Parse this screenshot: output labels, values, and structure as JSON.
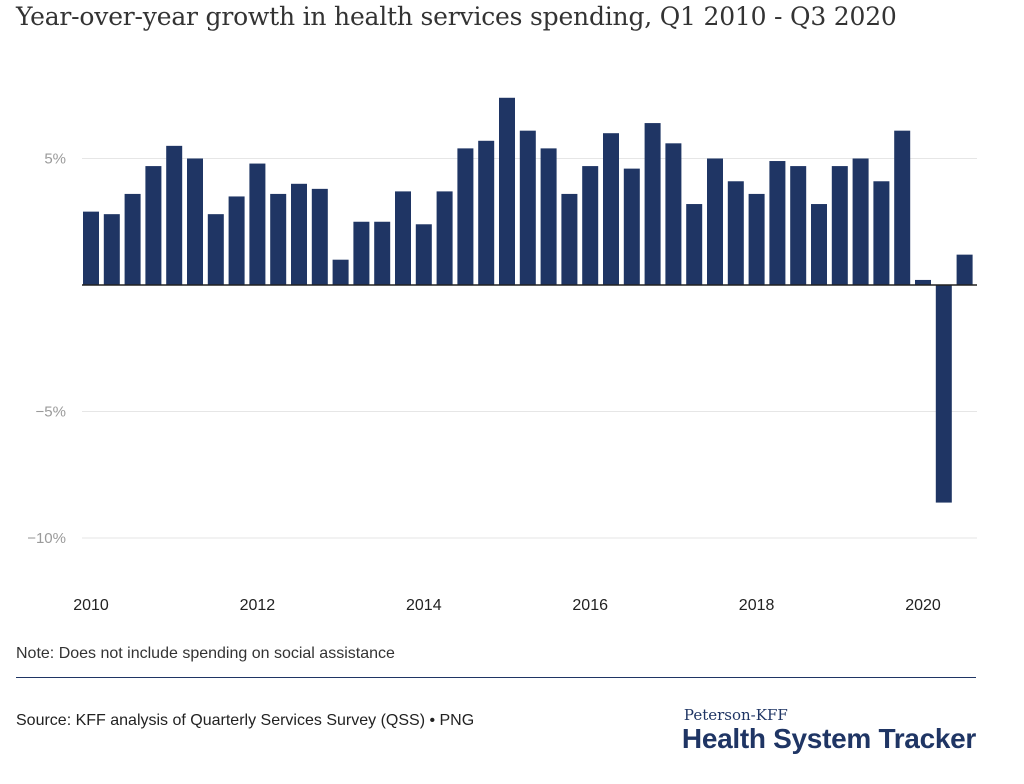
{
  "title": "Year-over-year growth in health services spending, Q1 2010 - Q3 2020",
  "note": "Note: Does not include spending on social assistance",
  "source": "Source: KFF analysis of Quarterly Services Survey (QSS) • PNG",
  "logo": {
    "top": "Peterson-KFF",
    "main": "Health System Tracker"
  },
  "colors": {
    "bar": "#1f3564",
    "grid": "#e6e6e6",
    "zero_line": "#222222",
    "divider": "#1f3564"
  },
  "chart_data": {
    "type": "bar",
    "title": "Year-over-year growth in health services spending, Q1 2010 - Q3 2020",
    "xlabel": "",
    "ylabel": "",
    "unit": "%",
    "ylim": [
      -11,
      8
    ],
    "grid": true,
    "y_ticks": [
      {
        "value": 5,
        "label": "5%"
      },
      {
        "value": -5,
        "label": "−5%"
      },
      {
        "value": -10,
        "label": "−10%"
      }
    ],
    "x_ticks": [
      {
        "index": 0,
        "label": "2010"
      },
      {
        "index": 8,
        "label": "2012"
      },
      {
        "index": 16,
        "label": "2014"
      },
      {
        "index": 24,
        "label": "2016"
      },
      {
        "index": 32,
        "label": "2018"
      },
      {
        "index": 40,
        "label": "2020"
      }
    ],
    "categories": [
      "Q1 2010",
      "Q2 2010",
      "Q3 2010",
      "Q4 2010",
      "Q1 2011",
      "Q2 2011",
      "Q3 2011",
      "Q4 2011",
      "Q1 2012",
      "Q2 2012",
      "Q3 2012",
      "Q4 2012",
      "Q1 2013",
      "Q2 2013",
      "Q3 2013",
      "Q4 2013",
      "Q1 2014",
      "Q2 2014",
      "Q3 2014",
      "Q4 2014",
      "Q1 2015",
      "Q2 2015",
      "Q3 2015",
      "Q4 2015",
      "Q1 2016",
      "Q2 2016",
      "Q3 2016",
      "Q4 2016",
      "Q1 2017",
      "Q2 2017",
      "Q3 2017",
      "Q4 2017",
      "Q1 2018",
      "Q2 2018",
      "Q3 2018",
      "Q4 2018",
      "Q1 2019",
      "Q2 2019",
      "Q3 2019",
      "Q4 2019",
      "Q1 2020",
      "Q2 2020",
      "Q3 2020"
    ],
    "values": [
      2.9,
      2.8,
      3.6,
      4.7,
      5.5,
      5.0,
      2.8,
      3.5,
      4.8,
      3.6,
      4.0,
      3.8,
      1.0,
      2.5,
      2.5,
      3.7,
      2.4,
      3.7,
      5.4,
      5.7,
      7.4,
      6.1,
      5.4,
      3.6,
      4.7,
      6.0,
      4.6,
      6.4,
      5.6,
      3.2,
      5.0,
      4.1,
      3.6,
      4.9,
      4.7,
      3.2,
      4.7,
      5.0,
      4.1,
      6.1,
      0.2,
      -8.6,
      1.2
    ]
  }
}
